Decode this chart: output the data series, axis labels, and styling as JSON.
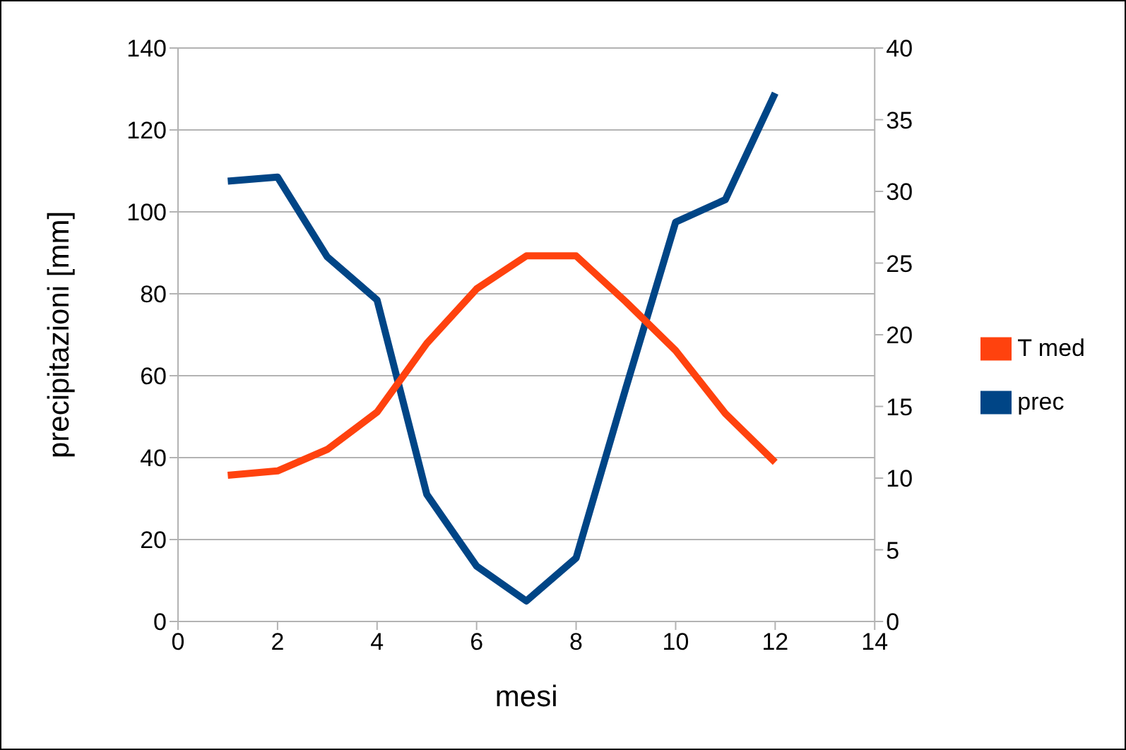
{
  "chart_data": {
    "type": "line",
    "xlabel": "mesi",
    "ylabel": "precipitazioni [mm]",
    "x": [
      1,
      2,
      3,
      4,
      5,
      6,
      7,
      8,
      9,
      10,
      11,
      12
    ],
    "series": [
      {
        "name": "prec",
        "color": "#004586",
        "values": [
          107.5,
          108.5,
          89,
          78.5,
          31,
          13.5,
          5,
          15.5,
          57,
          97.5,
          103,
          129
        ]
      },
      {
        "name": "T med",
        "color": "#ff420e",
        "axis": "y2",
        "values": [
          10.2,
          10.5,
          12,
          14.6,
          19.4,
          23.2,
          25.5,
          25.5,
          22.3,
          18.9,
          14.5,
          11.1
        ]
      }
    ],
    "xlim": [
      0,
      14
    ],
    "xticks": [
      0,
      2,
      4,
      6,
      8,
      10,
      12,
      14
    ],
    "ylim": [
      0,
      140
    ],
    "yticks": [
      0,
      20,
      40,
      60,
      80,
      100,
      120,
      140
    ],
    "y2lim": [
      0,
      40
    ],
    "y2ticks": [
      0,
      5,
      10,
      15,
      20,
      25,
      30,
      35,
      40
    ],
    "grid": "y",
    "legend": "right",
    "marker": "none",
    "line_style": "solid"
  }
}
